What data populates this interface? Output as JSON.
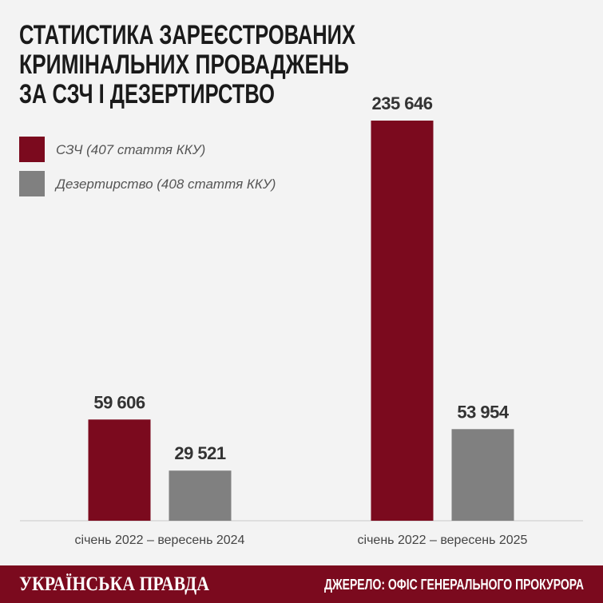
{
  "chart_data": {
    "type": "bar",
    "title": [
      "СТАТИСТИКА ЗАРЕЄСТРОВАНИХ",
      "КРИМІНАЛЬНИХ ПРОВАДЖЕНЬ",
      "ЗА СЗЧ І ДЕЗЕРТИРСТВО"
    ],
    "categories": [
      "січень 2022 – вересень 2024",
      "січень 2022 – вересень 2025"
    ],
    "series": [
      {
        "name": "СЗЧ (407 стаття ККУ)",
        "color": "#7b0a1e",
        "values": [
          59606,
          235646
        ],
        "value_labels": [
          "59 606",
          "235 646"
        ]
      },
      {
        "name": "Дезертирство (408 стаття ККУ)",
        "color": "#808080",
        "values": [
          29521,
          53954
        ],
        "value_labels": [
          "29 521",
          "53 954"
        ]
      }
    ],
    "legend": "top-left"
  },
  "footer": {
    "brand": "УКРАЇНСЬКА ПРАВДА",
    "source": "ДЖЕРЕЛО: ОФІС ГЕНЕРАЛЬНОГО ПРОКУРОРА"
  }
}
